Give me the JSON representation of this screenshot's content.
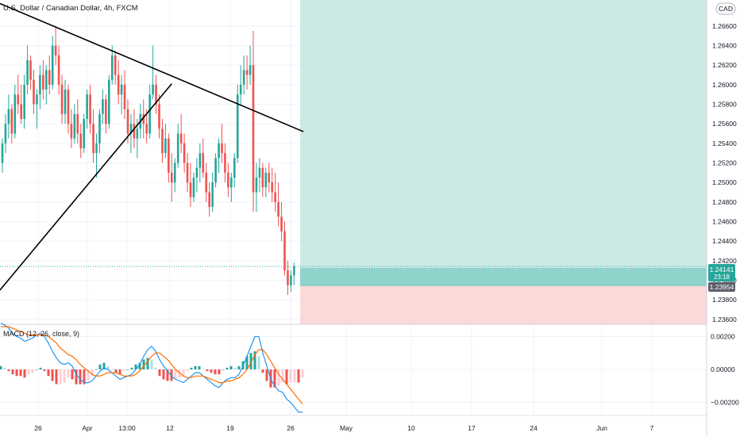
{
  "header": {
    "symbol_title": "U.S. Dollar / Canadian Dollar, 4h, FXCM",
    "currency_badge": "CAD"
  },
  "colors": {
    "bull": "#26a69a",
    "bear": "#ef5350",
    "profit_zone": "#cde9e6",
    "loss_zone": "#fcd9d9",
    "position_band": "#8fd3cb",
    "macd_line": "#2196f3",
    "signal_line": "#ff6d00",
    "hist_up_strong": "#26a69a",
    "hist_up_weak": "#b2dfdb",
    "hist_down_strong": "#ef5350",
    "hist_down_weak": "#ffcdd2",
    "trendline": "#000000",
    "price_tag_green": "#26a69a",
    "price_tag_gray": "#5d606b"
  },
  "chart_data": [
    {
      "type": "candlestick",
      "title": "U.S. Dollar / Canadian Dollar, 4h, FXCM",
      "ylim": [
        1.2355,
        1.2685
      ],
      "price_ticks": [
        "1.26600",
        "1.26400",
        "1.26200",
        "1.26000",
        "1.25800",
        "1.25600",
        "1.25400",
        "1.25200",
        "1.25000",
        "1.24800",
        "1.24600",
        "1.24400",
        "1.24200",
        "1.24000",
        "1.23800",
        "1.23600"
      ],
      "date_ticks": [
        "26",
        "Apr",
        "13:00",
        "12",
        "19",
        "26",
        "May",
        "10",
        "17",
        "24",
        "Jun",
        "7"
      ],
      "current_price": {
        "value": "1.24141",
        "countdown": "23:18"
      },
      "entry_price": "1.23954",
      "position": {
        "entry": 1.23954,
        "target": 1.2685,
        "stop": 1.2355
      },
      "trendlines": [
        {
          "from": {
            "bar": 0,
            "price": 1.2683
          },
          "to": {
            "bar": 96,
            "price": 1.2552
          }
        },
        {
          "from": {
            "bar": 0,
            "price": 1.239
          },
          "to": {
            "bar": 54,
            "price": 1.2601
          }
        }
      ],
      "candles": [
        [
          1.252,
          1.2545,
          1.251,
          1.254
        ],
        [
          1.254,
          1.257,
          1.253,
          1.256
        ],
        [
          1.256,
          1.259,
          1.2545,
          1.2575
        ],
        [
          1.2575,
          1.258,
          1.254,
          1.255
        ],
        [
          1.255,
          1.26,
          1.2545,
          1.259
        ],
        [
          1.259,
          1.261,
          1.257,
          1.258
        ],
        [
          1.258,
          1.26,
          1.256,
          1.2565
        ],
        [
          1.2565,
          1.261,
          1.2555,
          1.26
        ],
        [
          1.26,
          1.264,
          1.259,
          1.2625
        ],
        [
          1.2625,
          1.263,
          1.2595,
          1.2605
        ],
        [
          1.2605,
          1.2615,
          1.257,
          1.258
        ],
        [
          1.258,
          1.2595,
          1.2555,
          1.259
        ],
        [
          1.259,
          1.262,
          1.2575,
          1.261
        ],
        [
          1.261,
          1.2625,
          1.2585,
          1.2595
        ],
        [
          1.2595,
          1.262,
          1.258,
          1.2615
        ],
        [
          1.2615,
          1.263,
          1.259,
          1.26
        ],
        [
          1.26,
          1.265,
          1.2595,
          1.264
        ],
        [
          1.264,
          1.266,
          1.262,
          1.263
        ],
        [
          1.263,
          1.264,
          1.259,
          1.26
        ],
        [
          1.26,
          1.261,
          1.256,
          1.257
        ],
        [
          1.257,
          1.2605,
          1.256,
          1.2595
        ],
        [
          1.2595,
          1.26,
          1.255,
          1.256
        ],
        [
          1.256,
          1.2575,
          1.2535,
          1.2545
        ],
        [
          1.2545,
          1.258,
          1.254,
          1.257
        ],
        [
          1.257,
          1.2585,
          1.254,
          1.255
        ],
        [
          1.255,
          1.256,
          1.2525,
          1.2535
        ],
        [
          1.2535,
          1.257,
          1.253,
          1.2565
        ],
        [
          1.2565,
          1.2595,
          1.2555,
          1.259
        ],
        [
          1.259,
          1.26,
          1.255,
          1.256
        ],
        [
          1.256,
          1.2575,
          1.252,
          1.253
        ],
        [
          1.253,
          1.255,
          1.2505,
          1.254
        ],
        [
          1.254,
          1.2575,
          1.253,
          1.257
        ],
        [
          1.257,
          1.2595,
          1.256,
          1.2585
        ],
        [
          1.2585,
          1.259,
          1.255,
          1.256
        ],
        [
          1.256,
          1.261,
          1.2555,
          1.2605
        ],
        [
          1.2605,
          1.264,
          1.26,
          1.263
        ],
        [
          1.263,
          1.2635,
          1.26,
          1.261
        ],
        [
          1.261,
          1.2625,
          1.258,
          1.259
        ],
        [
          1.259,
          1.261,
          1.257,
          1.26
        ],
        [
          1.26,
          1.2615,
          1.2565,
          1.2575
        ],
        [
          1.2575,
          1.2585,
          1.254,
          1.255
        ],
        [
          1.255,
          1.257,
          1.253,
          1.256
        ],
        [
          1.256,
          1.2575,
          1.2535,
          1.2545
        ],
        [
          1.2545,
          1.2565,
          1.2525,
          1.2555
        ],
        [
          1.2555,
          1.258,
          1.2545,
          1.257
        ],
        [
          1.257,
          1.2585,
          1.2545,
          1.256
        ],
        [
          1.256,
          1.2575,
          1.254,
          1.255
        ],
        [
          1.255,
          1.26,
          1.2545,
          1.259
        ],
        [
          1.259,
          1.264,
          1.2585,
          1.26
        ],
        [
          1.26,
          1.261,
          1.257,
          1.258
        ],
        [
          1.258,
          1.259,
          1.2545,
          1.2555
        ],
        [
          1.2555,
          1.2565,
          1.252,
          1.253
        ],
        [
          1.253,
          1.256,
          1.2525,
          1.2545
        ],
        [
          1.2545,
          1.255,
          1.25,
          1.251
        ],
        [
          1.251,
          1.253,
          1.248,
          1.25
        ],
        [
          1.25,
          1.2525,
          1.249,
          1.252
        ],
        [
          1.252,
          1.256,
          1.2515,
          1.255
        ],
        [
          1.255,
          1.257,
          1.253,
          1.254
        ],
        [
          1.254,
          1.255,
          1.251,
          1.252
        ],
        [
          1.252,
          1.253,
          1.249,
          1.25
        ],
        [
          1.25,
          1.252,
          1.2475,
          1.2485
        ],
        [
          1.2485,
          1.251,
          1.248,
          1.2505
        ],
        [
          1.2505,
          1.2525,
          1.249,
          1.2515
        ],
        [
          1.2515,
          1.254,
          1.25,
          1.253
        ],
        [
          1.253,
          1.2545,
          1.2505,
          1.251
        ],
        [
          1.251,
          1.252,
          1.248,
          1.249
        ],
        [
          1.249,
          1.25,
          1.2465,
          1.2475
        ],
        [
          1.2475,
          1.251,
          1.247,
          1.25
        ],
        [
          1.25,
          1.253,
          1.2495,
          1.2525
        ],
        [
          1.2525,
          1.2545,
          1.251,
          1.254
        ],
        [
          1.254,
          1.256,
          1.252,
          1.253
        ],
        [
          1.253,
          1.254,
          1.25,
          1.251
        ],
        [
          1.251,
          1.252,
          1.2485,
          1.2495
        ],
        [
          1.2495,
          1.251,
          1.248,
          1.2505
        ],
        [
          1.2505,
          1.253,
          1.2495,
          1.2525
        ],
        [
          1.2525,
          1.26,
          1.252,
          1.259
        ],
        [
          1.259,
          1.262,
          1.258,
          1.26
        ],
        [
          1.26,
          1.263,
          1.259,
          1.2615
        ],
        [
          1.2615,
          1.263,
          1.2595,
          1.261
        ],
        [
          1.261,
          1.264,
          1.26,
          1.262
        ],
        [
          1.262,
          1.2655,
          1.247,
          1.249
        ],
        [
          1.249,
          1.252,
          1.247,
          1.2505
        ],
        [
          1.2505,
          1.2525,
          1.249,
          1.2515
        ],
        [
          1.2515,
          1.252,
          1.2485,
          1.2495
        ],
        [
          1.2495,
          1.2515,
          1.2485,
          1.251
        ],
        [
          1.251,
          1.252,
          1.249,
          1.25
        ],
        [
          1.25,
          1.2515,
          1.248,
          1.249
        ],
        [
          1.249,
          1.251,
          1.247,
          1.248
        ],
        [
          1.248,
          1.25,
          1.2455,
          1.2465
        ],
        [
          1.2465,
          1.248,
          1.244,
          1.245
        ],
        [
          1.245,
          1.246,
          1.2405,
          1.241
        ],
        [
          1.241,
          1.242,
          1.2385,
          1.2395
        ],
        [
          1.2395,
          1.241,
          1.2388,
          1.2405
        ],
        [
          1.2405,
          1.2418,
          1.2395,
          1.2414
        ]
      ]
    },
    {
      "type": "line",
      "title": "MACD (12, 26, close, 9)",
      "ylim": [
        -0.0027,
        0.0026
      ],
      "y_ticks": [
        "0.00200",
        "0.00000",
        "−0.00200"
      ],
      "series": [
        {
          "name": "MACD",
          "values": [
            0.0028,
            0.0027,
            0.0025,
            0.0022,
            0.002,
            0.0019,
            0.0017,
            0.0018,
            0.0019,
            0.0021,
            0.0022,
            0.002,
            0.0016,
            0.0011,
            0.0007,
            0.0004,
            0.0003,
            0.0004,
            0.0002,
            -0.0003,
            -0.0006,
            -0.0008,
            -0.0008,
            -0.0007,
            -0.0004,
            -0.0001,
            0.0001,
            0.0,
            -0.0002,
            -0.0004,
            -0.0006,
            -0.0005,
            -0.0004,
            -0.0003,
            0.0,
            0.0003,
            0.0008,
            0.0012,
            0.0014,
            0.0011,
            0.0006,
            0.0002,
            -0.0001,
            -0.0004,
            -0.0006,
            -0.0007,
            -0.0008,
            -0.0006,
            -0.0004,
            -0.0002,
            -0.0002,
            -0.0004,
            -0.0006,
            -0.0008,
            -0.001,
            -0.0011,
            -0.0008,
            -0.0006,
            -0.0005,
            -0.0005,
            -0.0003,
            0.0002,
            0.0008,
            0.0014,
            0.002,
            0.002,
            0.001,
            0.0002,
            -0.0006,
            -0.001,
            -0.0013,
            -0.0014,
            -0.0018,
            -0.002,
            -0.0023,
            -0.0026,
            -0.0026
          ]
        },
        {
          "name": "Signal",
          "values": [
            0.0026,
            0.0026,
            0.0026,
            0.0025,
            0.0024,
            0.0023,
            0.0022,
            0.0021,
            0.0021,
            0.0021,
            0.0021,
            0.0021,
            0.002,
            0.0018,
            0.0016,
            0.0013,
            0.0011,
            0.0009,
            0.0008,
            0.0006,
            0.0003,
            0.0001,
            -0.0001,
            -0.0003,
            -0.0004,
            -0.0004,
            -0.0003,
            -0.0002,
            -0.0002,
            -0.0002,
            -0.0003,
            -0.0004,
            -0.0004,
            -0.0004,
            -0.0003,
            -0.0001,
            0.0002,
            0.0005,
            0.0008,
            0.001,
            0.001,
            0.0008,
            0.0006,
            0.0003,
            0.0,
            -0.0002,
            -0.0004,
            -0.0005,
            -0.0005,
            -0.0004,
            -0.0004,
            -0.0004,
            -0.0005,
            -0.0006,
            -0.0007,
            -0.0008,
            -0.0008,
            -0.0007,
            -0.0007,
            -0.0006,
            -0.0005,
            -0.0003,
            0.0,
            0.0004,
            0.0009,
            0.0012,
            0.0012,
            0.0009,
            0.0005,
            0.0001,
            -0.0003,
            -0.0006,
            -0.0009,
            -0.0012,
            -0.0015,
            -0.0018,
            -0.0021
          ]
        }
      ]
    }
  ]
}
